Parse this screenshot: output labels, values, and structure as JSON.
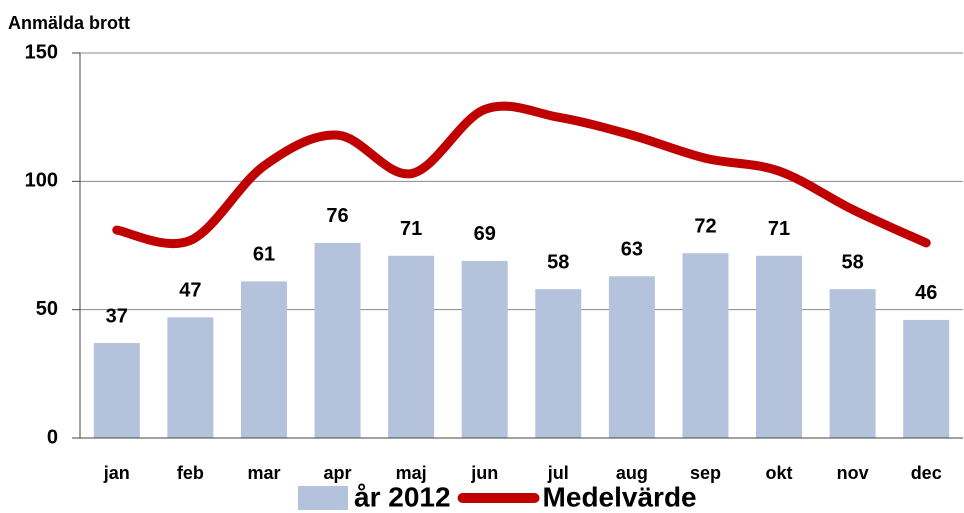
{
  "chart_data": {
    "type": "bar",
    "y_label": "Anmälda brott",
    "categories": [
      "jan",
      "feb",
      "mar",
      "apr",
      "maj",
      "jun",
      "jul",
      "aug",
      "sep",
      "okt",
      "nov",
      "dec"
    ],
    "series": [
      {
        "name": "år 2012",
        "type": "bar",
        "color": "#b4c2dc",
        "values": [
          37,
          47,
          61,
          76,
          71,
          69,
          58,
          63,
          72,
          71,
          58,
          46
        ]
      },
      {
        "name": "Medelvärde",
        "type": "line",
        "color": "#c00000",
        "values": [
          81,
          77,
          106,
          118,
          103,
          128,
          125,
          118,
          109,
          104,
          89,
          76
        ]
      }
    ],
    "ylim": [
      0,
      150
    ],
    "yticks": [
      0,
      50,
      100,
      150
    ],
    "grid": true,
    "legend": "bottom"
  }
}
